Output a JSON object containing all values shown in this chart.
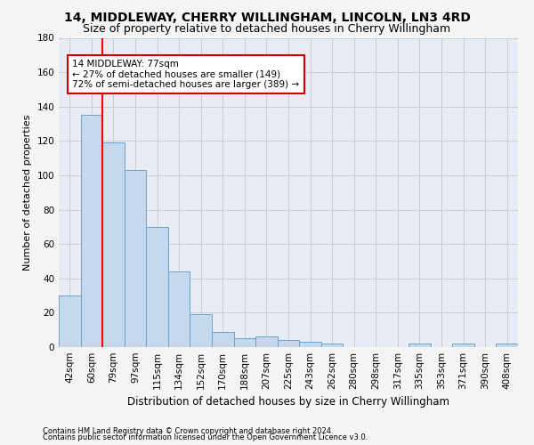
{
  "title1": "14, MIDDLEWAY, CHERRY WILLINGHAM, LINCOLN, LN3 4RD",
  "title2": "Size of property relative to detached houses in Cherry Willingham",
  "xlabel": "Distribution of detached houses by size in Cherry Willingham",
  "ylabel": "Number of detached properties",
  "footnote1": "Contains HM Land Registry data © Crown copyright and database right 2024.",
  "footnote2": "Contains public sector information licensed under the Open Government Licence v3.0.",
  "categories": [
    "42sqm",
    "60sqm",
    "79sqm",
    "97sqm",
    "115sqm",
    "134sqm",
    "152sqm",
    "170sqm",
    "188sqm",
    "207sqm",
    "225sqm",
    "243sqm",
    "262sqm",
    "280sqm",
    "298sqm",
    "317sqm",
    "335sqm",
    "353sqm",
    "371sqm",
    "390sqm",
    "408sqm"
  ],
  "values": [
    30,
    135,
    119,
    103,
    70,
    44,
    19,
    9,
    5,
    6,
    4,
    3,
    2,
    0,
    0,
    0,
    2,
    0,
    2,
    0,
    2
  ],
  "bar_color": "#c5d8ee",
  "bar_edge_color": "#6aa3cc",
  "red_line_x": 1.5,
  "annotation_line1": "14 MIDDLEWAY: 77sqm",
  "annotation_line2": "← 27% of detached houses are smaller (149)",
  "annotation_line3": "72% of semi-detached houses are larger (389) →",
  "annotation_box_color": "#ffffff",
  "annotation_box_edge": "#cc0000",
  "ylim": [
    0,
    180
  ],
  "yticks": [
    0,
    20,
    40,
    60,
    80,
    100,
    120,
    140,
    160,
    180
  ],
  "grid_color": "#cccccc",
  "bg_color": "#e8ecf5",
  "fig_bg_color": "#f5f5f5",
  "title1_fontsize": 10,
  "title2_fontsize": 9,
  "xlabel_fontsize": 8.5,
  "ylabel_fontsize": 8,
  "tick_fontsize": 7.5,
  "footnote_fontsize": 6
}
